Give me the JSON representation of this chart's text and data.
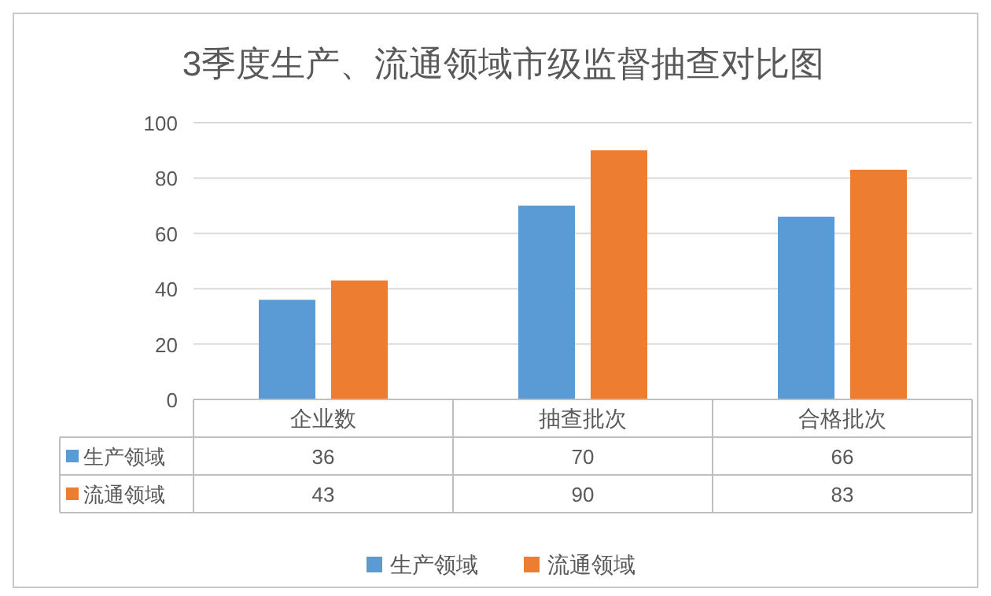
{
  "chart_data": {
    "type": "bar",
    "title": "3季度生产、流通领域市级监督抽查对比图",
    "categories": [
      "企业数",
      "抽查批次",
      "合格批次"
    ],
    "series": [
      {
        "name": "生产领域",
        "color": "#5b9bd5",
        "values": [
          36,
          70,
          66
        ]
      },
      {
        "name": "流通领域",
        "color": "#ed7d31",
        "values": [
          43,
          90,
          83
        ]
      }
    ],
    "ylim": [
      0,
      100
    ],
    "yticks": [
      0,
      20,
      40,
      60,
      80,
      100
    ],
    "grid": "y",
    "legend": "bottom",
    "data_labels": true
  }
}
